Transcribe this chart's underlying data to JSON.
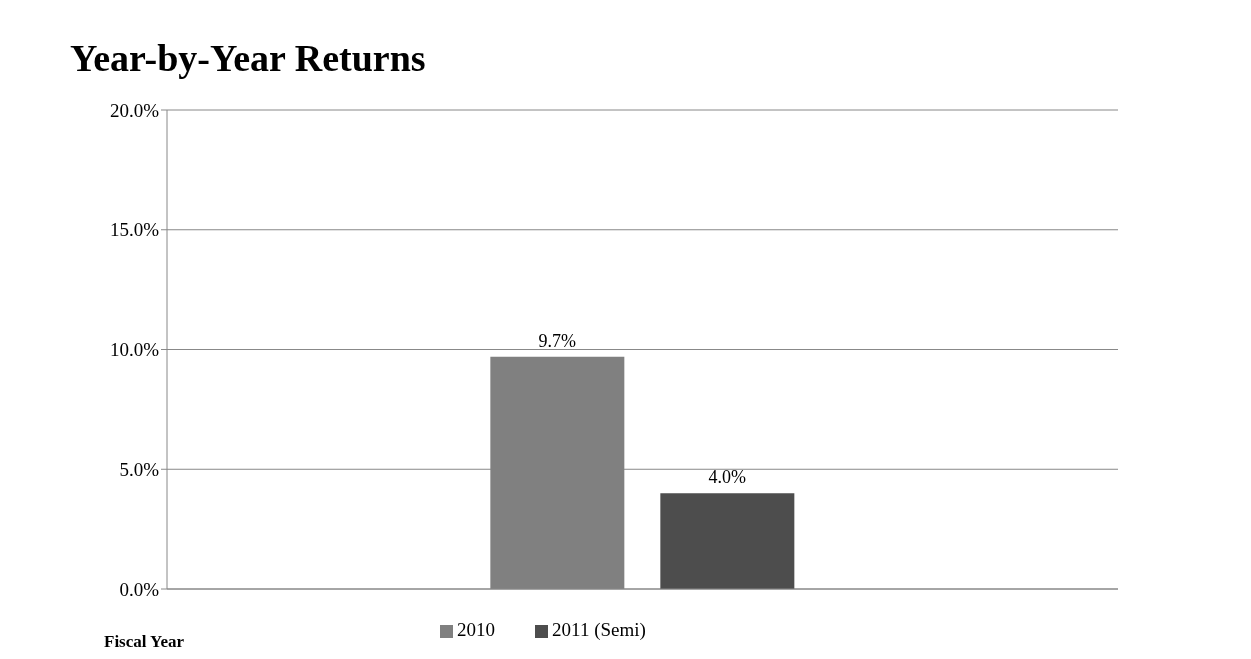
{
  "chart_data": {
    "type": "bar",
    "title": "Year-by-Year Returns",
    "xlabel": "Fiscal Year",
    "categories": [
      null
    ],
    "series": [
      {
        "name": "2010",
        "color": "#808080",
        "values": [
          9.7
        ],
        "value_labels": [
          "9.7%"
        ]
      },
      {
        "name": "2011 (Semi)",
        "color": "#4d4d4d",
        "values": [
          4.0
        ],
        "value_labels": [
          "4.0%"
        ]
      }
    ],
    "ylim": [
      0,
      20
    ],
    "yticks": [
      {
        "value": 0,
        "label": "0.0%"
      },
      {
        "value": 5,
        "label": "5.0%"
      },
      {
        "value": 10,
        "label": "10.0%"
      },
      {
        "value": 15,
        "label": "15.0%"
      },
      {
        "value": 20,
        "label": "20.0%"
      }
    ],
    "grid": "y",
    "legend": "bottom"
  }
}
